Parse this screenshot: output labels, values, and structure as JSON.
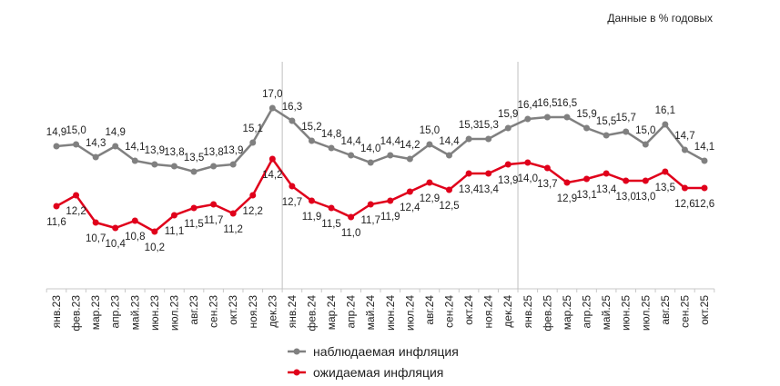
{
  "chart_data": {
    "type": "line",
    "title": "",
    "note": "Данные в % годовых",
    "categories": [
      "янв.23",
      "фев.23",
      "мар.23",
      "апр.23",
      "май.23",
      "июн.23",
      "июл.23",
      "авг.23",
      "сен.23",
      "окт.23",
      "ноя.23",
      "дек.23",
      "янв.24",
      "фев.24",
      "мар.24",
      "апр.24",
      "май.24",
      "июн.24",
      "июл.24",
      "авг.24",
      "сен.24",
      "окт.24",
      "ноя.24",
      "дек.24",
      "янв.25",
      "фев.25",
      "мар.25",
      "апр.25",
      "май.25",
      "июн.25",
      "июл.25",
      "авг.25",
      "сен.25",
      "окт.25"
    ],
    "series": [
      {
        "name": "наблюдаемая инфляция",
        "color": "#808080",
        "label_position": "above",
        "values": [
          14.9,
          15.0,
          14.3,
          14.9,
          14.1,
          13.9,
          13.8,
          13.5,
          13.8,
          13.9,
          15.1,
          17.0,
          16.3,
          15.2,
          14.8,
          14.4,
          14.0,
          14.4,
          14.2,
          15.0,
          14.4,
          15.3,
          15.3,
          15.9,
          16.4,
          16.5,
          16.5,
          15.9,
          15.5,
          15.7,
          15.0,
          16.1,
          14.7,
          14.1
        ]
      },
      {
        "name": "ожидаемая инфляция",
        "color": "#e0001b",
        "label_position": "below",
        "values": [
          11.6,
          12.2,
          10.7,
          10.4,
          10.8,
          10.2,
          11.1,
          11.5,
          11.7,
          11.2,
          12.2,
          14.2,
          12.7,
          11.9,
          11.5,
          11.0,
          11.7,
          11.9,
          12.4,
          12.9,
          12.5,
          13.4,
          13.4,
          13.9,
          14.0,
          13.7,
          12.9,
          13.1,
          13.4,
          13.0,
          13.0,
          13.5,
          12.6,
          12.6
        ]
      }
    ],
    "year_separators_after": [
      "дек.23",
      "дек.24"
    ],
    "decimal_separator": ",",
    "xlabel": "",
    "ylabel": "",
    "grid": false,
    "legend_position": "bottom"
  }
}
